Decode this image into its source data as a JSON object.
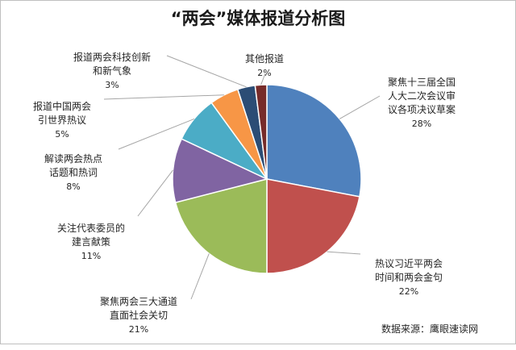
{
  "chart_data": {
    "type": "pie",
    "title": "“两会”媒体报道分析图",
    "colors": [
      "#4f81bd",
      "#c0504d",
      "#9bbb59",
      "#8064a2",
      "#4bacc6",
      "#f79646",
      "#2c4d75",
      "#772c2a"
    ],
    "slices": [
      {
        "label": "聚焦十三届全国人大二次会议审议各项决议草案",
        "value": 28,
        "pct_label": "28%"
      },
      {
        "label": "热议习近平两会时间和两会金句",
        "value": 22,
        "pct_label": "22%"
      },
      {
        "label": "聚焦两会三大通道直面社会关切",
        "value": 21,
        "pct_label": "21%"
      },
      {
        "label": "关注代表委员的建言献策",
        "value": 11,
        "pct_label": "11%"
      },
      {
        "label": "解读两会热点话题和热词",
        "value": 8,
        "pct_label": "8%"
      },
      {
        "label": "报道中国两会引世界热议",
        "value": 5,
        "pct_label": "5%"
      },
      {
        "label": "报道两会科技创新和新气象",
        "value": 3,
        "pct_label": "3%"
      },
      {
        "label": "其他报道",
        "value": 2,
        "pct_label": "2%"
      }
    ]
  },
  "display_labels": [
    "聚焦十三届全国\n人大二次会议审\n议各项决议草案",
    "热议习近平两会\n时间和两会金句",
    "聚焦两会三大通道\n直面社会关切",
    "关注代表委员的\n建言献策",
    "解读两会热点\n话题和热词",
    "报道中国两会\n引世界热议",
    "报道两会科技创新\n和新气象",
    "其他报道"
  ],
  "source": "数据来源：鹰眼速读网"
}
